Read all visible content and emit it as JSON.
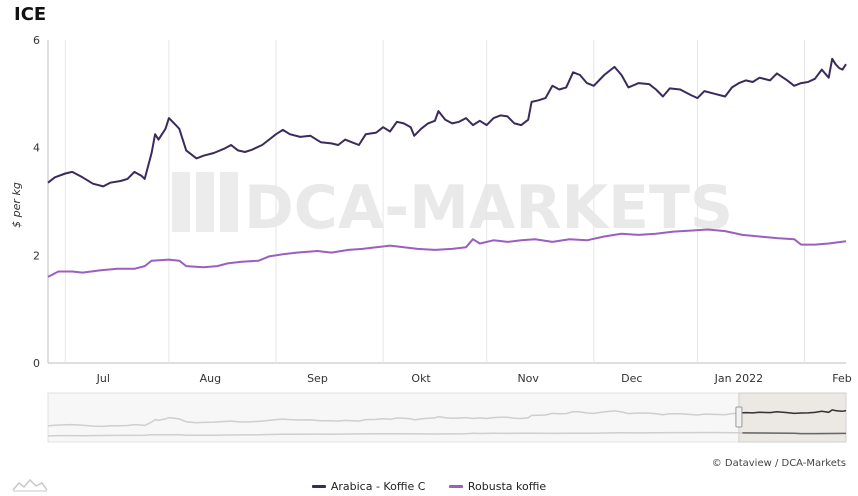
{
  "chart_data": {
    "type": "line",
    "title": "ICE",
    "ylabel": "$ per kg",
    "ylim": [
      0,
      6
    ],
    "yticks": [
      0,
      2,
      4,
      6
    ],
    "xlim": [
      "2021-06-15",
      "2022-02-01"
    ],
    "xticks": [
      {
        "date": "2021-07-01",
        "label": "Jul"
      },
      {
        "date": "2021-08-01",
        "label": "Aug"
      },
      {
        "date": "2021-09-01",
        "label": "Sep"
      },
      {
        "date": "2021-10-01",
        "label": "Okt"
      },
      {
        "date": "2021-11-01",
        "label": "Nov"
      },
      {
        "date": "2021-12-01",
        "label": "Dec"
      },
      {
        "date": "2022-01-01",
        "label": "Jan 2022"
      },
      {
        "date": "2022-02-01",
        "label": "Feb"
      }
    ],
    "grid": "vertical",
    "legend_position": "bottom",
    "watermark": "DCA-MARKETS",
    "credit": "© Dataview / DCA-Markets",
    "series": [
      {
        "name": "Arabica - Koffie C",
        "color": "#3b2a5c",
        "points": [
          [
            "2021-06-15",
            3.35
          ],
          [
            "2021-06-17",
            3.45
          ],
          [
            "2021-06-20",
            3.52
          ],
          [
            "2021-06-22",
            3.55
          ],
          [
            "2021-06-25",
            3.45
          ],
          [
            "2021-06-28",
            3.33
          ],
          [
            "2021-07-01",
            3.28
          ],
          [
            "2021-07-03",
            3.35
          ],
          [
            "2021-07-06",
            3.38
          ],
          [
            "2021-07-08",
            3.42
          ],
          [
            "2021-07-10",
            3.55
          ],
          [
            "2021-07-12",
            3.48
          ],
          [
            "2021-07-13",
            3.42
          ],
          [
            "2021-07-15",
            3.9
          ],
          [
            "2021-07-16",
            4.25
          ],
          [
            "2021-07-17",
            4.15
          ],
          [
            "2021-07-19",
            4.35
          ],
          [
            "2021-07-20",
            4.55
          ],
          [
            "2021-07-22",
            4.42
          ],
          [
            "2021-07-23",
            4.35
          ],
          [
            "2021-07-25",
            3.95
          ],
          [
            "2021-07-28",
            3.8
          ],
          [
            "2021-07-30",
            3.85
          ],
          [
            "2021-08-02",
            3.9
          ],
          [
            "2021-08-05",
            3.98
          ],
          [
            "2021-08-07",
            4.05
          ],
          [
            "2021-08-09",
            3.95
          ],
          [
            "2021-08-11",
            3.92
          ],
          [
            "2021-08-13",
            3.96
          ],
          [
            "2021-08-16",
            4.05
          ],
          [
            "2021-08-18",
            4.15
          ],
          [
            "2021-08-20",
            4.25
          ],
          [
            "2021-08-22",
            4.33
          ],
          [
            "2021-08-24",
            4.25
          ],
          [
            "2021-08-27",
            4.2
          ],
          [
            "2021-08-30",
            4.22
          ],
          [
            "2021-09-02",
            4.1
          ],
          [
            "2021-09-05",
            4.08
          ],
          [
            "2021-09-07",
            4.05
          ],
          [
            "2021-09-09",
            4.15
          ],
          [
            "2021-09-11",
            4.1
          ],
          [
            "2021-09-13",
            4.05
          ],
          [
            "2021-09-15",
            4.25
          ],
          [
            "2021-09-18",
            4.28
          ],
          [
            "2021-09-20",
            4.38
          ],
          [
            "2021-09-22",
            4.3
          ],
          [
            "2021-09-24",
            4.48
          ],
          [
            "2021-09-26",
            4.45
          ],
          [
            "2021-09-28",
            4.38
          ],
          [
            "2021-09-29",
            4.22
          ],
          [
            "2021-10-01",
            4.35
          ],
          [
            "2021-10-03",
            4.45
          ],
          [
            "2021-10-05",
            4.5
          ],
          [
            "2021-10-06",
            4.68
          ],
          [
            "2021-10-08",
            4.52
          ],
          [
            "2021-10-10",
            4.45
          ],
          [
            "2021-10-12",
            4.48
          ],
          [
            "2021-10-14",
            4.55
          ],
          [
            "2021-10-16",
            4.42
          ],
          [
            "2021-10-18",
            4.5
          ],
          [
            "2021-10-20",
            4.42
          ],
          [
            "2021-10-22",
            4.55
          ],
          [
            "2021-10-24",
            4.6
          ],
          [
            "2021-10-26",
            4.58
          ],
          [
            "2021-10-28",
            4.45
          ],
          [
            "2021-10-30",
            4.42
          ],
          [
            "2021-11-01",
            4.52
          ],
          [
            "2021-11-02",
            4.85
          ],
          [
            "2021-11-04",
            4.88
          ],
          [
            "2021-11-06",
            4.92
          ],
          [
            "2021-11-08",
            5.15
          ],
          [
            "2021-11-10",
            5.08
          ],
          [
            "2021-11-12",
            5.12
          ],
          [
            "2021-11-14",
            5.4
          ],
          [
            "2021-11-16",
            5.35
          ],
          [
            "2021-11-18",
            5.2
          ],
          [
            "2021-11-20",
            5.15
          ],
          [
            "2021-11-23",
            5.35
          ],
          [
            "2021-11-26",
            5.5
          ],
          [
            "2021-11-28",
            5.35
          ],
          [
            "2021-11-30",
            5.12
          ],
          [
            "2021-12-03",
            5.2
          ],
          [
            "2021-12-06",
            5.18
          ],
          [
            "2021-12-08",
            5.08
          ],
          [
            "2021-12-10",
            4.95
          ],
          [
            "2021-12-12",
            5.1
          ],
          [
            "2021-12-15",
            5.08
          ],
          [
            "2021-12-18",
            4.98
          ],
          [
            "2021-12-20",
            4.92
          ],
          [
            "2021-12-22",
            5.05
          ],
          [
            "2021-12-25",
            5.0
          ],
          [
            "2021-12-28",
            4.95
          ],
          [
            "2021-12-30",
            5.12
          ],
          [
            "2022-01-01",
            5.2
          ],
          [
            "2022-01-03",
            5.25
          ],
          [
            "2022-01-05",
            5.22
          ],
          [
            "2022-01-07",
            5.3
          ],
          [
            "2022-01-10",
            5.25
          ],
          [
            "2022-01-12",
            5.38
          ],
          [
            "2022-01-15",
            5.25
          ],
          [
            "2022-01-17",
            5.15
          ],
          [
            "2022-01-19",
            5.2
          ],
          [
            "2022-01-21",
            5.22
          ],
          [
            "2022-01-23",
            5.28
          ],
          [
            "2022-01-25",
            5.45
          ],
          [
            "2022-01-27",
            5.3
          ],
          [
            "2022-01-28",
            5.65
          ],
          [
            "2022-01-29",
            5.55
          ],
          [
            "2022-01-30",
            5.48
          ],
          [
            "2022-01-31",
            5.45
          ],
          [
            "2022-02-01",
            5.55
          ]
        ]
      },
      {
        "name": "Robusta koffie",
        "color": "#9b5fc0",
        "points": [
          [
            "2021-06-15",
            1.6
          ],
          [
            "2021-06-18",
            1.7
          ],
          [
            "2021-06-22",
            1.7
          ],
          [
            "2021-06-25",
            1.68
          ],
          [
            "2021-06-30",
            1.72
          ],
          [
            "2021-07-05",
            1.75
          ],
          [
            "2021-07-10",
            1.75
          ],
          [
            "2021-07-13",
            1.8
          ],
          [
            "2021-07-15",
            1.9
          ],
          [
            "2021-07-20",
            1.92
          ],
          [
            "2021-07-23",
            1.9
          ],
          [
            "2021-07-25",
            1.8
          ],
          [
            "2021-07-30",
            1.78
          ],
          [
            "2021-08-03",
            1.8
          ],
          [
            "2021-08-06",
            1.85
          ],
          [
            "2021-08-10",
            1.88
          ],
          [
            "2021-08-15",
            1.9
          ],
          [
            "2021-08-18",
            1.98
          ],
          [
            "2021-08-22",
            2.02
          ],
          [
            "2021-08-26",
            2.05
          ],
          [
            "2021-09-01",
            2.08
          ],
          [
            "2021-09-05",
            2.05
          ],
          [
            "2021-09-10",
            2.1
          ],
          [
            "2021-09-14",
            2.12
          ],
          [
            "2021-09-18",
            2.15
          ],
          [
            "2021-09-22",
            2.18
          ],
          [
            "2021-09-26",
            2.15
          ],
          [
            "2021-09-30",
            2.12
          ],
          [
            "2021-10-05",
            2.1
          ],
          [
            "2021-10-10",
            2.12
          ],
          [
            "2021-10-14",
            2.15
          ],
          [
            "2021-10-16",
            2.3
          ],
          [
            "2021-10-18",
            2.22
          ],
          [
            "2021-10-22",
            2.28
          ],
          [
            "2021-10-26",
            2.25
          ],
          [
            "2021-10-30",
            2.28
          ],
          [
            "2021-11-03",
            2.3
          ],
          [
            "2021-11-08",
            2.25
          ],
          [
            "2021-11-13",
            2.3
          ],
          [
            "2021-11-18",
            2.28
          ],
          [
            "2021-11-23",
            2.35
          ],
          [
            "2021-11-28",
            2.4
          ],
          [
            "2021-12-03",
            2.38
          ],
          [
            "2021-12-08",
            2.4
          ],
          [
            "2021-12-13",
            2.44
          ],
          [
            "2021-12-18",
            2.46
          ],
          [
            "2021-12-23",
            2.48
          ],
          [
            "2021-12-28",
            2.45
          ],
          [
            "2022-01-02",
            2.38
          ],
          [
            "2022-01-07",
            2.35
          ],
          [
            "2022-01-12",
            2.32
          ],
          [
            "2022-01-17",
            2.3
          ],
          [
            "2022-01-19",
            2.2
          ],
          [
            "2022-01-23",
            2.2
          ],
          [
            "2022-01-27",
            2.22
          ],
          [
            "2022-02-01",
            2.26
          ]
        ]
      }
    ]
  },
  "navigator": {
    "series_color": "#cfcfcf",
    "highlight_color": "#333333",
    "window_start": "2022-01-01",
    "window_end": "2022-02-01"
  }
}
